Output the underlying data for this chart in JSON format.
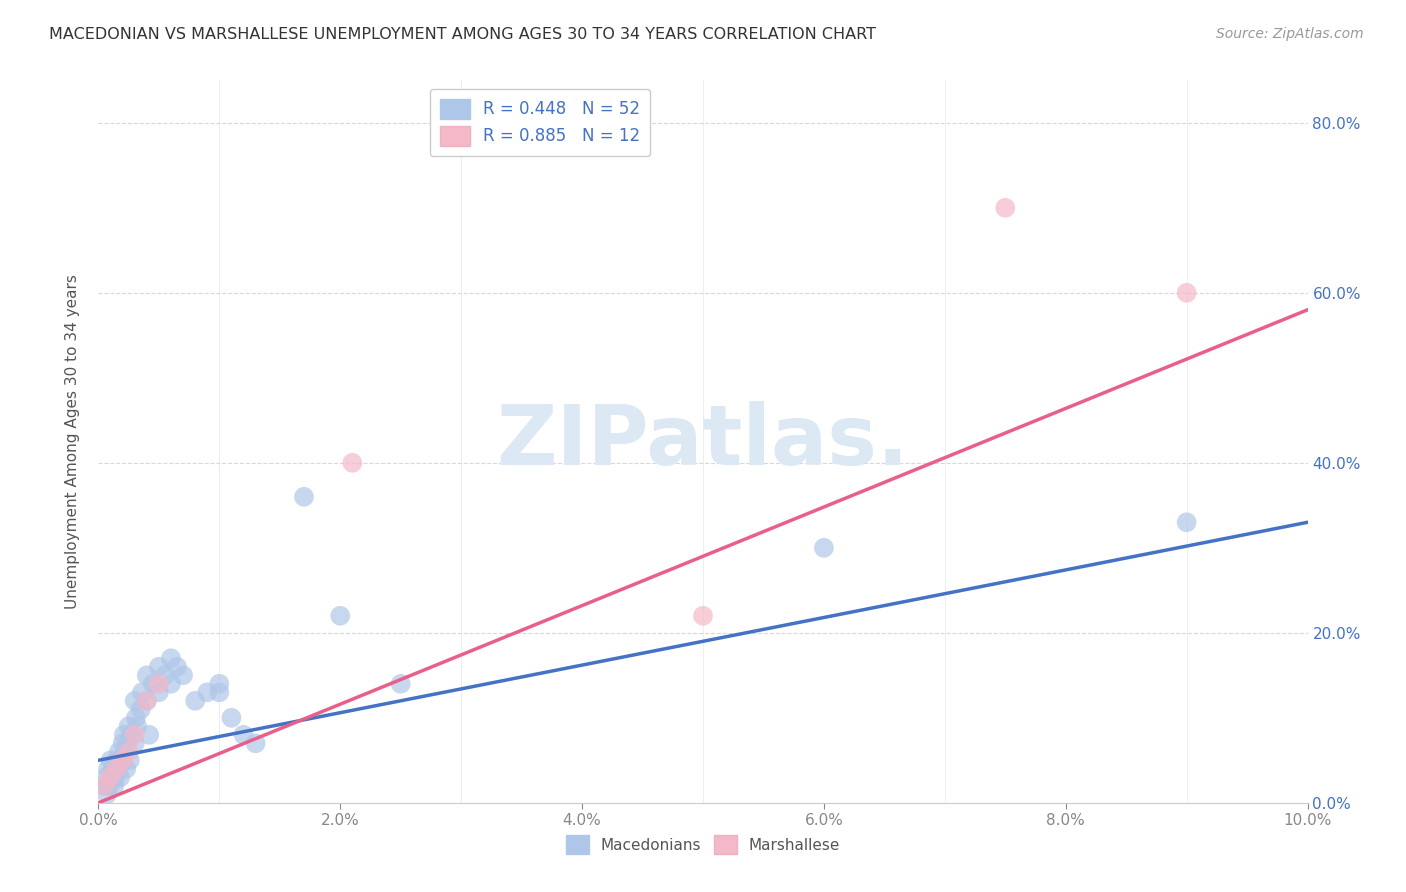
{
  "title": "MACEDONIAN VS MARSHALLESE UNEMPLOYMENT AMONG AGES 30 TO 34 YEARS CORRELATION CHART",
  "source": "Source: ZipAtlas.com",
  "ylabel": "Unemployment Among Ages 30 to 34 years",
  "macedonian_R": 0.448,
  "macedonian_N": 52,
  "marshallese_R": 0.885,
  "marshallese_N": 12,
  "macedonian_color": "#aec6e8",
  "marshallese_color": "#f4b8c8",
  "macedonian_line_color": "#4472c4",
  "marshallese_line_color": "#e8608a",
  "background_color": "#ffffff",
  "grid_color": "#d8d8d8",
  "xlim": [
    0.0,
    0.1
  ],
  "ylim": [
    0.0,
    0.85
  ],
  "mac_x": [
    0.0005,
    0.0006,
    0.0007,
    0.0008,
    0.0009,
    0.001,
    0.001,
    0.0012,
    0.0013,
    0.0014,
    0.0015,
    0.0016,
    0.0017,
    0.0018,
    0.002,
    0.002,
    0.0021,
    0.0022,
    0.0023,
    0.0024,
    0.0025,
    0.0026,
    0.0027,
    0.003,
    0.003,
    0.0031,
    0.0032,
    0.0035,
    0.0036,
    0.004,
    0.004,
    0.0042,
    0.0045,
    0.005,
    0.005,
    0.0055,
    0.006,
    0.006,
    0.0065,
    0.007,
    0.008,
    0.009,
    0.01,
    0.01,
    0.011,
    0.012,
    0.013,
    0.017,
    0.02,
    0.025,
    0.06,
    0.09
  ],
  "mac_y": [
    0.02,
    0.03,
    0.01,
    0.04,
    0.02,
    0.03,
    0.05,
    0.04,
    0.02,
    0.03,
    0.05,
    0.04,
    0.06,
    0.03,
    0.07,
    0.05,
    0.08,
    0.06,
    0.04,
    0.07,
    0.09,
    0.05,
    0.08,
    0.07,
    0.12,
    0.1,
    0.09,
    0.11,
    0.13,
    0.12,
    0.15,
    0.08,
    0.14,
    0.13,
    0.16,
    0.15,
    0.14,
    0.17,
    0.16,
    0.15,
    0.12,
    0.13,
    0.13,
    0.14,
    0.1,
    0.08,
    0.07,
    0.36,
    0.22,
    0.14,
    0.3,
    0.33
  ],
  "marsh_x": [
    0.0005,
    0.001,
    0.0015,
    0.002,
    0.0025,
    0.003,
    0.004,
    0.005,
    0.021,
    0.05,
    0.075,
    0.09
  ],
  "marsh_y": [
    0.02,
    0.03,
    0.04,
    0.05,
    0.06,
    0.08,
    0.12,
    0.14,
    0.4,
    0.22,
    0.7,
    0.6
  ],
  "mac_line_x": [
    0.0,
    0.1
  ],
  "mac_line_y": [
    0.05,
    0.33
  ],
  "marsh_line_x": [
    0.0,
    0.1
  ],
  "marsh_line_y": [
    0.0,
    0.58
  ]
}
